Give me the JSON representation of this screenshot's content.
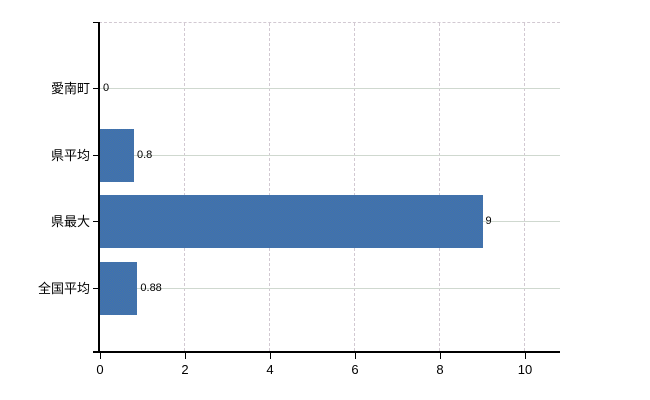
{
  "chart_data": {
    "type": "bar",
    "orientation": "horizontal",
    "title": "",
    "xlabel": "",
    "ylabel": "",
    "categories": [
      "愛南町",
      "県平均",
      "県最大",
      "全国平均"
    ],
    "values": [
      0,
      0.8,
      9,
      0.88
    ],
    "value_labels": [
      "0",
      "0.8",
      "9",
      "0.88"
    ],
    "x_ticks": [
      0,
      2,
      4,
      6,
      8,
      10
    ],
    "x_tick_labels": [
      "0",
      "2",
      "4",
      "6",
      "8",
      "10"
    ],
    "xlim": [
      0,
      10
    ],
    "grid": true,
    "legend": false,
    "colors": {
      "bar": "#4172ab",
      "bar_dither_light": "#3b6cb8",
      "bar_dither_dark": "#48789f",
      "axis": "#000000",
      "horizontal_grid": "#cfd8cf",
      "vertical_grid_dashed": "#d2c9d2",
      "background": "#ffffff",
      "text": "#000000"
    }
  }
}
